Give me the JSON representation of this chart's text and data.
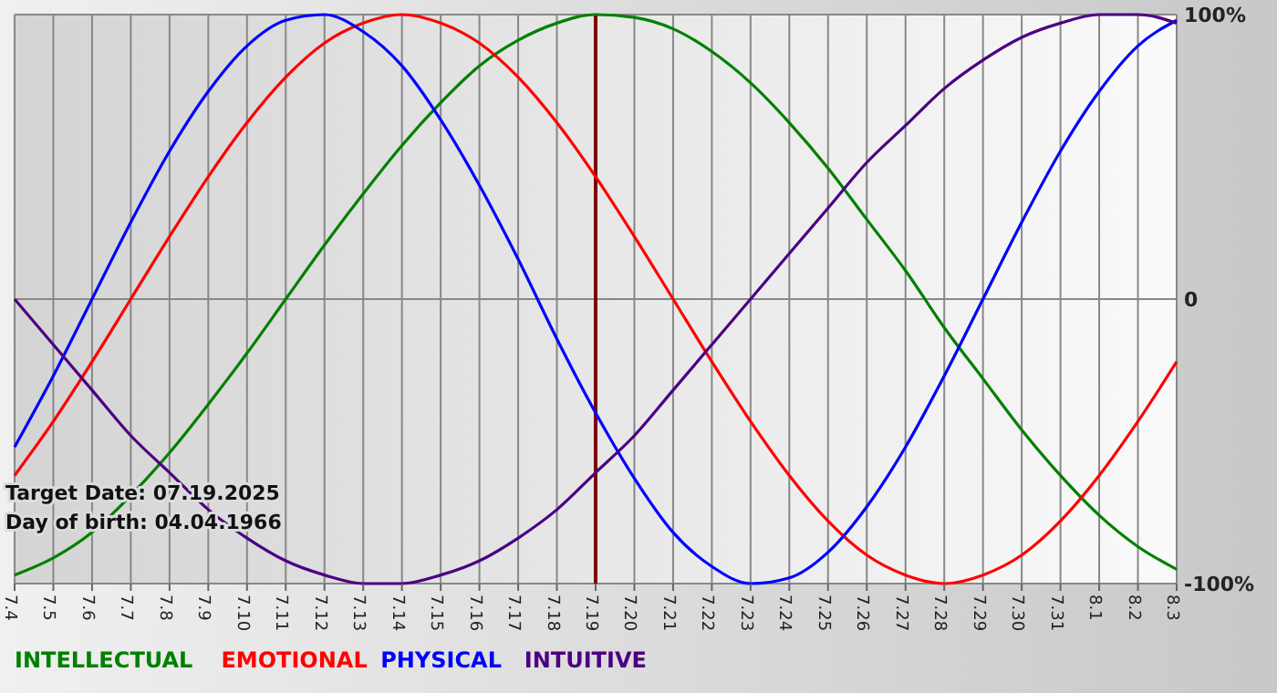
{
  "chart_data": {
    "type": "line",
    "categories": [
      "7.4",
      "7.5",
      "7.6",
      "7.7",
      "7.8",
      "7.9",
      "7.10",
      "7.11",
      "7.12",
      "7.13",
      "7.14",
      "7.15",
      "7.16",
      "7.17",
      "7.18",
      "7.19",
      "7.20",
      "7.21",
      "7.22",
      "7.23",
      "7.24",
      "7.25",
      "7.26",
      "7.27",
      "7.28",
      "7.29",
      "7.30",
      "7.31",
      "8.1",
      "8.2",
      "8.3"
    ],
    "series": [
      {
        "name": "INTELLECTUAL",
        "color": "#008000",
        "values": [
          -97,
          -91,
          -82,
          -69,
          -54,
          -37,
          -19,
          0,
          19,
          37,
          54,
          69,
          82,
          91,
          97,
          100,
          99,
          95,
          87,
          76,
          62,
          46,
          28,
          10,
          -10,
          -28,
          -46,
          -62,
          -76,
          -87,
          -95
        ]
      },
      {
        "name": "EMOTIONAL",
        "color": "#ff0000",
        "values": [
          -62,
          -43,
          -22,
          0,
          22,
          43,
          62,
          78,
          90,
          97,
          100,
          97,
          90,
          78,
          62,
          43,
          22,
          0,
          -22,
          -43,
          -62,
          -78,
          -90,
          -97,
          -100,
          -97,
          -90,
          -78,
          -62,
          -43,
          -22
        ]
      },
      {
        "name": "PHYSICAL",
        "color": "#0000ff",
        "values": [
          -52,
          -27,
          0,
          27,
          52,
          73,
          89,
          98,
          100,
          94,
          82,
          63,
          40,
          14,
          -14,
          -40,
          -63,
          -82,
          -94,
          -100,
          -98,
          -89,
          -73,
          -52,
          -27,
          0,
          27,
          52,
          73,
          89,
          98
        ]
      },
      {
        "name": "INTUITIVE",
        "color": "#4b0082",
        "values": [
          0,
          -16,
          -32,
          -48,
          -61,
          -74,
          -84,
          -92,
          -97,
          -100,
          -100,
          -97,
          -92,
          -84,
          -74,
          -61,
          -48,
          -32,
          -16,
          0,
          16,
          32,
          48,
          61,
          74,
          84,
          92,
          97,
          100,
          100,
          97
        ]
      }
    ],
    "ylim": [
      -100,
      100
    ],
    "yticks": [
      {
        "value": 100,
        "label": "100%"
      },
      0,
      {
        "value": -100,
        "label": "-100%"
      }
    ],
    "grid": true,
    "legend": "bottom",
    "ref_lines": [
      {
        "axis": "x",
        "value": "7.19",
        "color": "#800000"
      }
    ],
    "annotations": [
      "Target Date: 07.19.2025",
      "Day of birth: 04.04.1966"
    ]
  }
}
